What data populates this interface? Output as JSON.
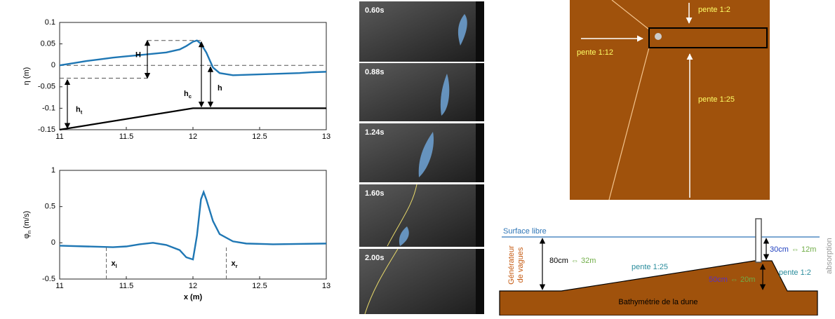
{
  "chart_data": [
    {
      "type": "line",
      "ylabel": {
        "symbol": "η",
        "unit": "(m)"
      },
      "xlim": [
        11,
        13
      ],
      "xticks": [
        11,
        11.5,
        12,
        12.5,
        13
      ],
      "ylim": [
        -0.15,
        0.1
      ],
      "yticks": [
        0.1,
        0.05,
        0,
        -0.05,
        -0.1,
        -0.15
      ],
      "series": [
        {
          "color": "#1f77b4",
          "x": [
            11,
            11.1,
            11.2,
            11.3,
            11.4,
            11.5,
            11.6,
            11.7,
            11.8,
            11.9,
            11.95,
            12.0,
            12.03,
            12.06,
            12.1,
            12.15,
            12.2,
            12.3,
            12.4,
            12.5,
            12.6,
            12.7,
            12.8,
            12.9,
            13
          ],
          "values": [
            0,
            0.005,
            0.01,
            0.014,
            0.018,
            0.021,
            0.024,
            0.027,
            0.03,
            0.037,
            0.045,
            0.055,
            0.058,
            0.05,
            0.03,
            -0.005,
            -0.018,
            -0.023,
            -0.022,
            -0.021,
            -0.02,
            -0.019,
            -0.018,
            -0.016,
            -0.015
          ]
        },
        {
          "color": "#000000",
          "x": [
            11,
            12,
            13
          ],
          "values": [
            -0.15,
            -0.1,
            -0.1
          ]
        }
      ],
      "reference_lines": [
        0,
        0.058,
        -0.03
      ],
      "annotations": [
        {
          "text": "H"
        },
        {
          "text": "h",
          "sub": "t"
        },
        {
          "text": "h",
          "sub": "c"
        },
        {
          "text": "h"
        }
      ]
    },
    {
      "type": "line",
      "ylabel": {
        "symbol": "φ",
        "sub": "n",
        "unit": "(m/s)"
      },
      "xlabel": "x (m)",
      "xlim": [
        11,
        13
      ],
      "xticks": [
        11,
        11.5,
        12,
        12.5,
        13
      ],
      "ylim": [
        -0.5,
        1
      ],
      "yticks": [
        1,
        0.5,
        0,
        -0.5
      ],
      "series": [
        {
          "color": "#1f77b4",
          "x": [
            11,
            11.2,
            11.4,
            11.5,
            11.6,
            11.7,
            11.8,
            11.9,
            11.95,
            12.0,
            12.03,
            12.06,
            12.08,
            12.1,
            12.15,
            12.2,
            12.3,
            12.4,
            12.6,
            13
          ],
          "values": [
            -0.04,
            -0.05,
            -0.06,
            -0.05,
            -0.02,
            0,
            -0.03,
            -0.1,
            -0.2,
            -0.23,
            0.1,
            0.6,
            0.7,
            0.6,
            0.3,
            0.12,
            0.02,
            -0.01,
            -0.02,
            -0.01
          ]
        }
      ],
      "annotations": [
        {
          "text": "x",
          "sub": "l",
          "x": 11.35
        },
        {
          "text": "x",
          "sub": "r",
          "x": 12.25
        }
      ]
    }
  ],
  "photos": [
    {
      "time": "0.60s"
    },
    {
      "time": "0.88s"
    },
    {
      "time": "1.24s"
    },
    {
      "time": "1.60s"
    },
    {
      "time": "2.00s"
    }
  ],
  "plan_view": {
    "labels": [
      "pente 1:2",
      "pente 1:12",
      "pente 1:25"
    ]
  },
  "cross_section": {
    "surface": "Surface libre",
    "generator": [
      "Générateur",
      "de vagues"
    ],
    "depth": [
      "80cm",
      "⇔ 32m"
    ],
    "slope": "pente 1:25",
    "crest": [
      "30cm",
      "⇔ 12m"
    ],
    "back_slope": "pente 1:2",
    "dune_height": [
      "50cm",
      "⇔ 20m"
    ],
    "bathymetry": "Bathymétrie de la dune",
    "absorption": "absorption"
  }
}
